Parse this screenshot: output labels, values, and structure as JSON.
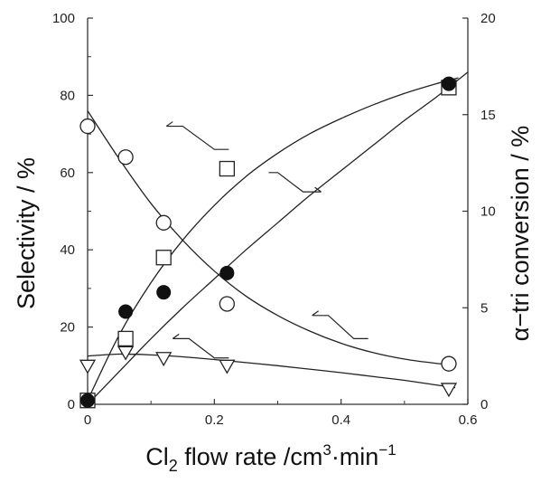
{
  "chart_data": {
    "type": "scatter",
    "xlabel": "Cl",
    "xlabel_subscript": "2",
    "xlabel_rest": " flow rate  /cm",
    "xlabel_unit_sup": "3",
    "xlabel_unit_mid": "·min",
    "xlabel_unit_sup2": "−1",
    "ylabel": "Selectivity  / %",
    "y2label": "α−tri conversion  / %",
    "xlim": [
      0,
      0.6
    ],
    "ylim": [
      0,
      100
    ],
    "y2lim": [
      0,
      20
    ],
    "xticks": [
      "0",
      "0.2",
      "0.4",
      "0.6"
    ],
    "yticks": [
      "0",
      "20",
      "40",
      "60",
      "80",
      "100"
    ],
    "y2ticks": [
      "0",
      "5",
      "10",
      "15",
      "20"
    ],
    "grid": false,
    "series": [
      {
        "marker": "open-circle",
        "axis": "left",
        "x": [
          0,
          0.06,
          0.12,
          0.22,
          0.57
        ],
        "y": [
          72,
          64,
          47,
          26,
          10.5
        ],
        "curve_x": [
          0,
          0.05,
          0.1,
          0.15,
          0.2,
          0.25,
          0.3,
          0.35,
          0.4,
          0.45,
          0.5,
          0.55,
          0.58
        ],
        "curve_y": [
          76,
          63.5,
          52,
          42.5,
          34.5,
          28,
          23,
          19,
          15.8,
          13.4,
          11.7,
          10.6,
          10.2
        ]
      },
      {
        "marker": "open-square",
        "axis": "left",
        "x": [
          0,
          0.06,
          0.12,
          0.22,
          0.57
        ],
        "y": [
          1,
          17,
          38,
          61,
          82
        ],
        "curve_x": [
          0,
          0.05,
          0.1,
          0.15,
          0.2,
          0.25,
          0.3,
          0.35,
          0.4,
          0.45,
          0.5,
          0.55,
          0.585
        ],
        "curve_y": [
          1,
          18,
          31.5,
          42.5,
          51.5,
          59,
          65,
          70,
          74,
          77.5,
          80.5,
          83,
          84.5
        ]
      },
      {
        "marker": "filled-circle",
        "axis": "left",
        "x": [
          0,
          0.06,
          0.12,
          0.22,
          0.57
        ],
        "y": [
          1,
          24,
          29,
          34,
          83
        ],
        "curve_x": [
          0,
          0.05,
          0.1,
          0.15,
          0.2,
          0.25,
          0.3,
          0.35,
          0.4,
          0.45,
          0.5,
          0.55,
          0.6
        ],
        "curve_y": [
          0,
          8.5,
          17,
          25,
          32.5,
          40,
          47,
          54,
          60.5,
          67,
          73.5,
          79.5,
          86
        ]
      },
      {
        "marker": "open-triangle-down",
        "axis": "left",
        "x": [
          0,
          0.06,
          0.12,
          0.22,
          0.57
        ],
        "y": [
          10,
          13.5,
          12,
          10,
          4
        ],
        "curve_x": [
          0,
          0.05,
          0.1,
          0.15,
          0.2,
          0.25,
          0.3,
          0.35,
          0.4,
          0.45,
          0.5,
          0.55,
          0.58
        ],
        "curve_y": [
          12.5,
          13,
          12.8,
          12.3,
          11.6,
          10.8,
          10,
          9.1,
          8.2,
          7.2,
          6.2,
          5,
          4.3
        ]
      }
    ],
    "annotations": [
      {
        "type": "arrow-left",
        "points_to": "left",
        "x": [
          0.15,
          0.2
        ],
        "y": [
          72,
          66
        ]
      },
      {
        "type": "arrow-right",
        "points_to": "right",
        "x": [
          0.3,
          0.34
        ],
        "y": [
          60,
          55
        ]
      },
      {
        "type": "arrow-left",
        "points_to": "left",
        "x": [
          0.38,
          0.42
        ],
        "y": [
          23,
          17
        ]
      },
      {
        "type": "arrow-left",
        "points_to": "left",
        "x": [
          0.16,
          0.2
        ],
        "y": [
          17,
          12
        ]
      }
    ]
  }
}
